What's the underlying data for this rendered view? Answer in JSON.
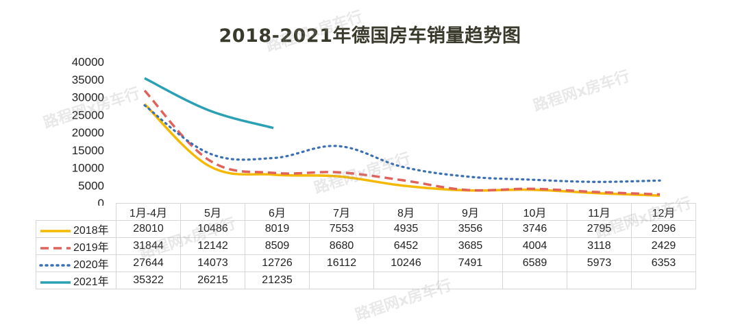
{
  "chart_data": {
    "type": "line",
    "title": "2018-2021年德国房车销量趋势图",
    "categories": [
      "1月-4月",
      "5月",
      "6月",
      "7月",
      "8月",
      "9月",
      "10月",
      "11月",
      "12月"
    ],
    "y_ticks": [
      "40000",
      "35000",
      "30000",
      "25000",
      "20000",
      "15000",
      "10000",
      "5000",
      "0"
    ],
    "ylim": [
      0,
      40000
    ],
    "xlabel": "",
    "ylabel": "",
    "legend_position": "data-table",
    "series": [
      {
        "name": "2018年",
        "color": "#f5b800",
        "style": "solid",
        "values": [
          28010,
          10486,
          8019,
          7553,
          4935,
          3556,
          3746,
          2795,
          2096
        ]
      },
      {
        "name": "2019年",
        "color": "#e0625a",
        "style": "dashed",
        "values": [
          31844,
          12142,
          8509,
          8680,
          6452,
          3685,
          4004,
          3118,
          2429
        ]
      },
      {
        "name": "2020年",
        "color": "#3a6fb5",
        "style": "dotted",
        "values": [
          27644,
          14073,
          12726,
          16112,
          10246,
          7491,
          6589,
          5973,
          6353
        ]
      },
      {
        "name": "2021年",
        "color": "#2aa0b4",
        "style": "solid",
        "values": [
          35322,
          26215,
          21235,
          null,
          null,
          null,
          null,
          null,
          null
        ]
      }
    ]
  },
  "watermarks": [
    "路程网x房车行",
    "路程网x房车行",
    "路程网x房车行",
    "路程网x房车行",
    "路程网x房车行",
    "路程网x房车行",
    "路程网x房车行"
  ]
}
